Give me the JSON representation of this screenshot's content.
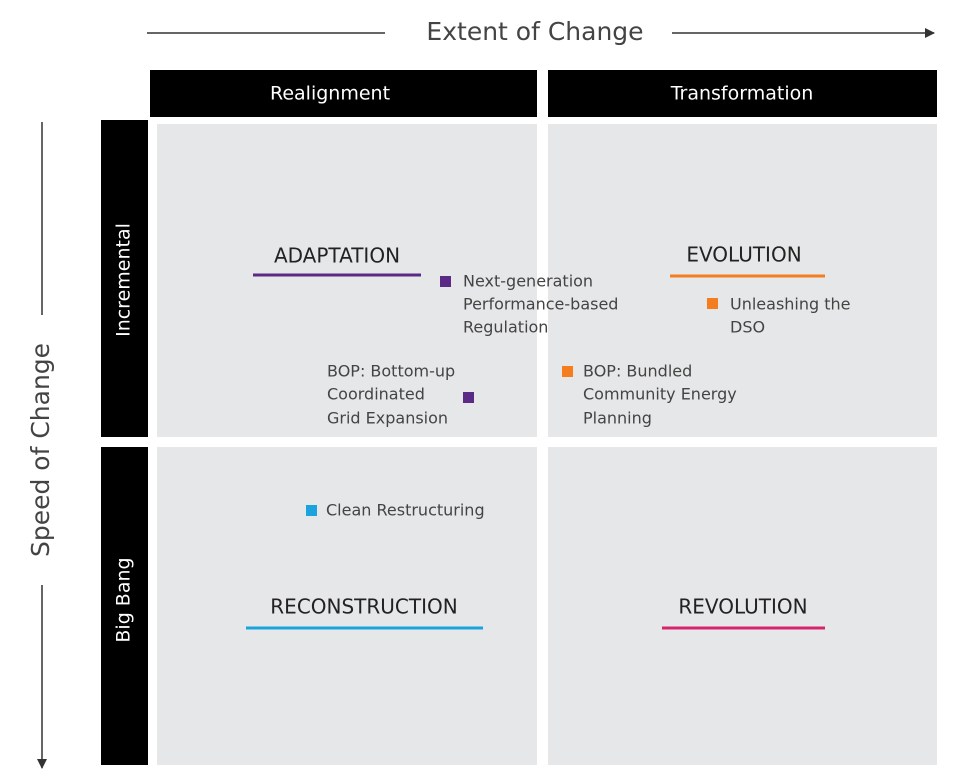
{
  "axes": {
    "x_label": "Extent of Change",
    "y_label": "Speed of Change"
  },
  "columns": [
    "Realignment",
    "Transformation"
  ],
  "rows": [
    "Incremental",
    "Big Bang"
  ],
  "quadrants": [
    "ADAPTATION",
    "EVOLUTION",
    "RECONSTRUCTION",
    "REVOLUTION"
  ],
  "items": [
    {
      "lines": [
        "Next-generation",
        "Performance-based",
        "Regulation"
      ]
    },
    {
      "lines": [
        "Unleashing the",
        "DSO"
      ]
    },
    {
      "lines": [
        "BOP: Bottom-up",
        "Coordinated",
        "Grid Expansion"
      ]
    },
    {
      "lines": [
        "BOP: Bundled",
        "Community Energy",
        "Planning"
      ]
    },
    {
      "lines": [
        "Clean Restructuring"
      ]
    }
  ]
}
